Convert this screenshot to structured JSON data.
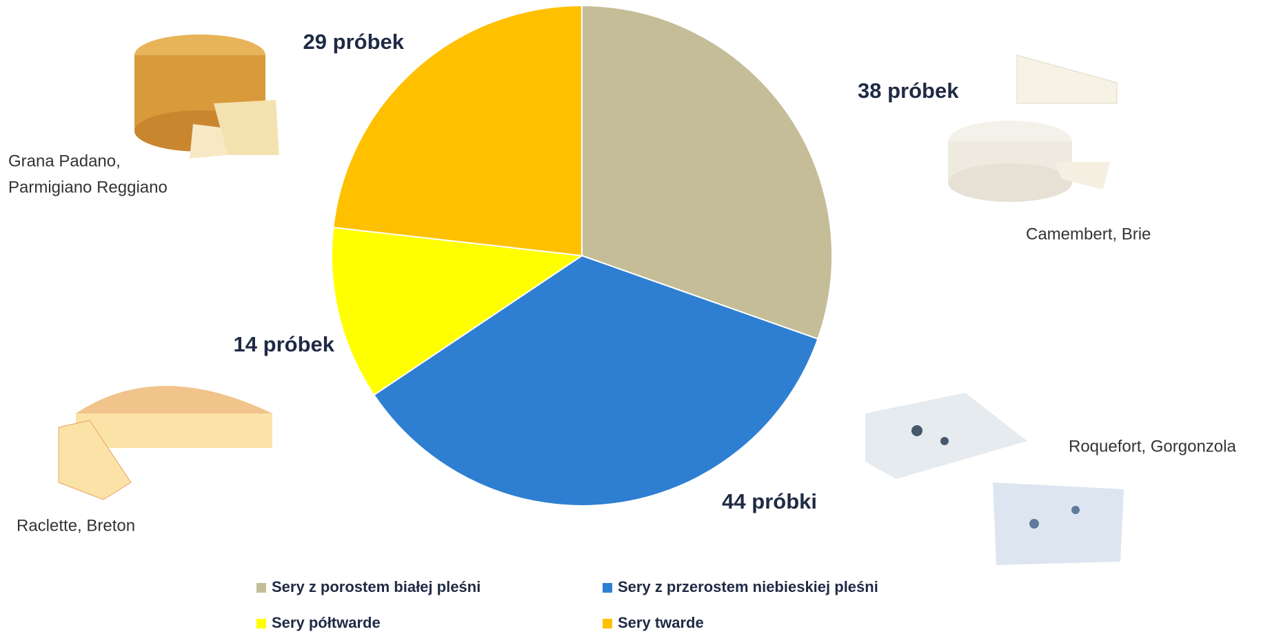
{
  "chart_data": {
    "type": "pie",
    "categories": [
      "Sery z porostem białej pleśni",
      "Sery z przerostem niebieskiej pleśni",
      "Sery półtwarde",
      "Sery twarde"
    ],
    "values": [
      38,
      44,
      14,
      29
    ],
    "value_labels": [
      "38 próbek",
      "44 próbki",
      "14 próbek",
      "29 próbek"
    ],
    "colors": [
      "#c4bd97",
      "#2e7fd1",
      "#ffff00",
      "#ffc000"
    ],
    "annotations": [
      {
        "lines": [
          "Camembert, Brie"
        ]
      },
      {
        "lines": [
          "Roquefort, Gorgonzola"
        ]
      },
      {
        "lines": [
          "Raclette, Breton"
        ]
      },
      {
        "lines": [
          "Grana Padano,",
          "Parmigiano Reggiano"
        ]
      }
    ]
  }
}
